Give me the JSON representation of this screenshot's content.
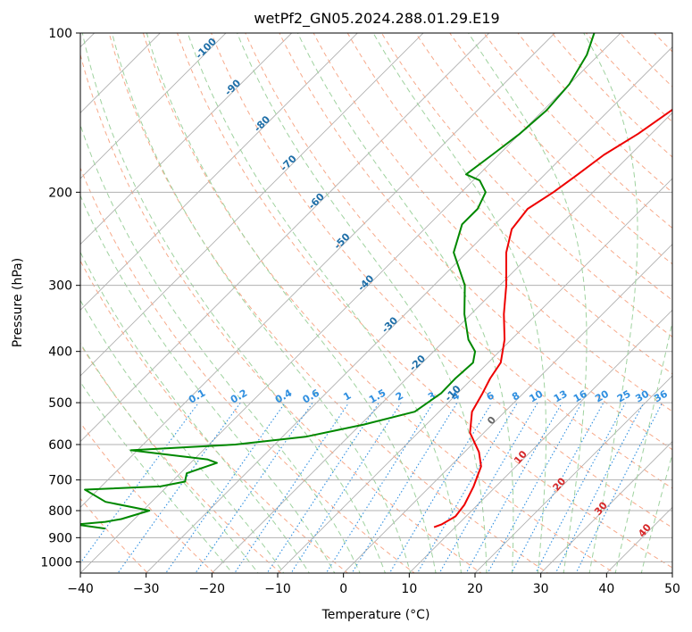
{
  "chart_data": {
    "type": "skew-t",
    "title": "wetPf2_GN05.2024.288.01.29.E19",
    "xlabel": "Temperature (°C)",
    "ylabel": "Pressure (hPa)",
    "xlim": [
      -40,
      50
    ],
    "ylim": [
      1050,
      100
    ],
    "y_scale": "log",
    "x_ticks": [
      "−40",
      "−30",
      "−20",
      "−10",
      "0",
      "10",
      "20",
      "30",
      "40",
      "50"
    ],
    "x_tick_values": [
      -40,
      -30,
      -20,
      -10,
      0,
      10,
      20,
      30,
      40,
      50
    ],
    "y_ticks": [
      "100",
      "200",
      "300",
      "400",
      "500",
      "600",
      "700",
      "800",
      "900",
      "1000"
    ],
    "y_tick_values": [
      100,
      200,
      300,
      400,
      500,
      600,
      700,
      800,
      900,
      1000
    ],
    "grid": true,
    "colors": {
      "temperature": "#ee0000",
      "dewpoint": "#008800",
      "isotherm": "#b0b0b0",
      "dry_adiabat": "#f7a98a",
      "moist_adiabat": "#9fd29f",
      "mixing_ratio": "#2f8fe0",
      "mixing_ratio_label": "#2f8fe0",
      "dry_label": "#1f6fa8",
      "moist_label": "#d62728"
    },
    "series": [
      {
        "name": "Temperature",
        "pressure": [
          860,
          850,
          820,
          780,
          720,
          660,
          620,
          570,
          520,
          480,
          450,
          420,
          380,
          340,
          300,
          260,
          235,
          215,
          200,
          185,
          170,
          155,
          140,
          125,
          112,
          100
        ],
        "values": [
          6.8,
          7.5,
          8.4,
          8.0,
          6.6,
          4.7,
          2.2,
          -2.1,
          -5.0,
          -6.2,
          -7.3,
          -8.1,
          -11.0,
          -15.0,
          -19.0,
          -24.0,
          -26.7,
          -27.4,
          -26.0,
          -25.0,
          -24.0,
          -22.0,
          -20.5,
          -20.0,
          -19.8,
          -20.0
        ]
      },
      {
        "name": "Dewpoint",
        "pressure": [
          865,
          850,
          840,
          830,
          800,
          770,
          730,
          720,
          705,
          680,
          650,
          640,
          615,
          600,
          580,
          550,
          520,
          480,
          450,
          420,
          400,
          380,
          340,
          300,
          260,
          230,
          215,
          200,
          190,
          185,
          170,
          155,
          140,
          125,
          110,
          100
        ],
        "values": [
          -43,
          -48,
          -44,
          -42,
          -39,
          -47,
          -52,
          -41,
          -38,
          -39,
          -36,
          -38,
          -51,
          -36,
          -26.5,
          -19.5,
          -13.7,
          -12.5,
          -12.6,
          -12.3,
          -13.7,
          -16.5,
          -21.0,
          -25.3,
          -32.0,
          -35.0,
          -35.0,
          -36.3,
          -39.0,
          -42.0,
          -41.0,
          -40.0,
          -39.5,
          -40.0,
          -41.8,
          -44.0
        ]
      }
    ],
    "isotherms": [
      -160,
      -150,
      -140,
      -130,
      -120,
      -110,
      -100,
      -90,
      -80,
      -70,
      -60,
      -50,
      -40,
      -30,
      -20,
      -10,
      0,
      10,
      20,
      30,
      40,
      50
    ],
    "dry_adiabats_c": [
      -100,
      -90,
      -80,
      -70,
      -60,
      -50,
      -40,
      -30,
      -20,
      -10
    ],
    "moist_adiabats_c": [
      0,
      10,
      20,
      30,
      40
    ],
    "mixing_ratios": [
      "0.1",
      "0.2",
      "0.4",
      "0.6",
      "1",
      "1.5",
      "2",
      "3",
      "4",
      "6",
      "8",
      "10",
      "13",
      "16",
      "20",
      "25",
      "30",
      "36"
    ],
    "mixing_ratio_values": [
      0.1,
      0.2,
      0.4,
      0.6,
      1,
      1.5,
      2,
      3,
      4,
      6,
      8,
      10,
      13,
      16,
      20,
      25,
      30,
      36
    ],
    "dry_adiabat_labels": [
      "-100",
      "-90",
      "-80",
      "-70",
      "-60",
      "-50",
      "-40",
      "-30",
      "-20",
      "-10"
    ],
    "moist_adiabat_labels": [
      "0",
      "10",
      "20",
      "30",
      "40"
    ]
  }
}
